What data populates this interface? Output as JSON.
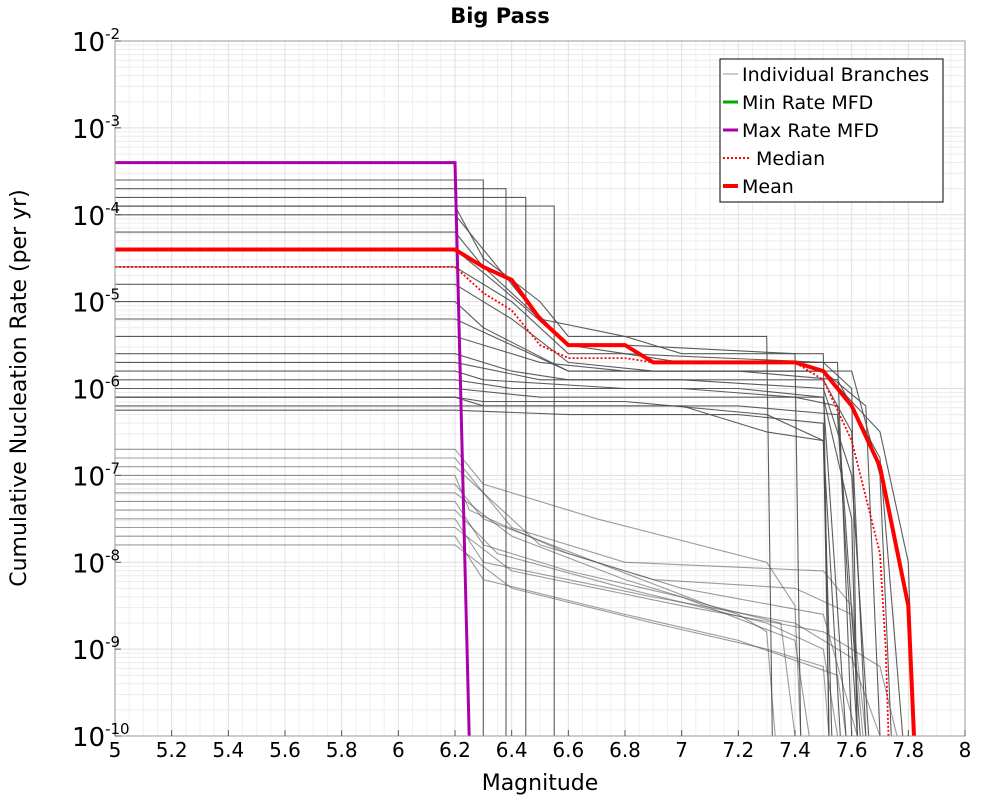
{
  "chart_data": {
    "type": "line",
    "title": "Big Pass",
    "xlabel": "Magnitude",
    "ylabel": "Cumulative Nucleation Rate (per yr)",
    "xlim": [
      5,
      8
    ],
    "ylim_log10": [
      -10,
      -2
    ],
    "y_scale": "log",
    "x_ticks": [
      "5",
      "5.2",
      "5.4",
      "5.6",
      "5.8",
      "6",
      "6.2",
      "6.4",
      "6.6",
      "6.8",
      "7",
      "7.2",
      "7.4",
      "7.6",
      "7.8",
      "8"
    ],
    "y_ticks": [
      {
        "base": "10",
        "exp": "-10",
        "value": -10
      },
      {
        "base": "10",
        "exp": "-9",
        "value": -9
      },
      {
        "base": "10",
        "exp": "-8",
        "value": -8
      },
      {
        "base": "10",
        "exp": "-7",
        "value": -7
      },
      {
        "base": "10",
        "exp": "-6",
        "value": -6
      },
      {
        "base": "10",
        "exp": "-5",
        "value": -5
      },
      {
        "base": "10",
        "exp": "-4",
        "value": -4
      },
      {
        "base": "10",
        "exp": "-3",
        "value": -3
      },
      {
        "base": "10",
        "exp": "-2",
        "value": -2
      }
    ],
    "grid": true,
    "legend_position": "top-right",
    "series": [
      {
        "name": "Individual Branches",
        "style": "thin",
        "color": "#4a4a4a",
        "branches": [
          {
            "x": [
              5,
              6.2,
              6.3,
              6.3
            ],
            "log10y": [
              -3.6,
              -3.6,
              -3.6,
              -10
            ]
          },
          {
            "x": [
              5,
              6.2,
              6.38,
              6.38
            ],
            "log10y": [
              -3.7,
              -3.7,
              -3.7,
              -10
            ]
          },
          {
            "x": [
              5,
              6.2,
              6.45,
              6.45
            ],
            "log10y": [
              -3.8,
              -3.8,
              -3.8,
              -10
            ]
          },
          {
            "x": [
              5,
              6.2,
              6.55,
              6.55
            ],
            "log10y": [
              -3.9,
              -3.9,
              -3.9,
              -10
            ]
          },
          {
            "x": [
              5,
              6.2,
              6.3,
              6.5,
              6.6,
              6.8,
              7.3,
              7.32
            ],
            "log10y": [
              -3.9,
              -3.9,
              -4.5,
              -5,
              -5.4,
              -5.4,
              -5.4,
              -10
            ]
          },
          {
            "x": [
              5,
              6.2,
              6.3,
              6.45,
              6.6,
              6.8,
              7.4,
              7.42
            ],
            "log10y": [
              -4.0,
              -4.0,
              -4.4,
              -5,
              -5.5,
              -5.5,
              -5.6,
              -10
            ]
          },
          {
            "x": [
              5,
              6.2,
              6.3,
              6.5,
              6.8,
              7.0,
              7.5,
              7.52
            ],
            "log10y": [
              -4.2,
              -4.2,
              -4.6,
              -5.2,
              -5.4,
              -5.6,
              -5.6,
              -10
            ]
          },
          {
            "x": [
              5,
              6.2,
              6.35,
              6.6,
              6.8,
              7.0,
              7.55,
              7.6
            ],
            "log10y": [
              -4.4,
              -4.4,
              -4.8,
              -5.5,
              -5.6,
              -5.7,
              -5.7,
              -10
            ]
          },
          {
            "x": [
              5,
              6.2,
              6.4,
              6.6,
              6.8,
              7.5,
              7.6,
              7.62
            ],
            "log10y": [
              -4.6,
              -4.6,
              -5.0,
              -5.6,
              -5.6,
              -5.7,
              -6.0,
              -10
            ]
          },
          {
            "x": [
              5,
              6.2,
              6.4,
              6.6,
              6.9,
              7.5,
              7.65,
              7.7
            ],
            "log10y": [
              -4.8,
              -4.8,
              -5.2,
              -5.7,
              -5.8,
              -5.8,
              -6.2,
              -10
            ]
          },
          {
            "x": [
              5,
              6.2,
              6.3,
              6.6,
              7.0,
              7.6,
              7.7,
              7.74
            ],
            "log10y": [
              -5.0,
              -5.0,
              -5.3,
              -5.8,
              -5.8,
              -5.8,
              -7.0,
              -10
            ]
          },
          {
            "x": [
              5,
              6.2,
              6.4,
              6.6,
              7.0,
              7.5,
              7.7,
              7.8,
              7.82
            ],
            "log10y": [
              -5.2,
              -5.2,
              -5.5,
              -5.8,
              -5.8,
              -5.8,
              -6.5,
              -8.0,
              -10
            ]
          },
          {
            "x": [
              5,
              6.2,
              6.5,
              6.8,
              7.2,
              7.55,
              7.7,
              7.78
            ],
            "log10y": [
              -5.4,
              -5.4,
              -5.7,
              -5.8,
              -5.8,
              -5.9,
              -6.8,
              -10
            ]
          },
          {
            "x": [
              5,
              6.2,
              6.4,
              6.6,
              7.0,
              7.5,
              7.6,
              7.66
            ],
            "log10y": [
              -5.6,
              -5.6,
              -5.8,
              -5.9,
              -5.9,
              -6.0,
              -7.0,
              -10
            ]
          },
          {
            "x": [
              5,
              6.2,
              6.5,
              7.0,
              7.5,
              7.6,
              7.65
            ],
            "log10y": [
              -5.7,
              -5.7,
              -5.9,
              -5.9,
              -5.9,
              -6.5,
              -10
            ]
          },
          {
            "x": [
              5,
              6.2,
              6.3,
              6.8,
              7.2,
              7.5,
              7.58
            ],
            "log10y": [
              -5.8,
              -5.8,
              -5.9,
              -6.0,
              -6.0,
              -6.1,
              -10
            ]
          },
          {
            "x": [
              5,
              6.2,
              6.4,
              7.0,
              7.4,
              7.55,
              7.63
            ],
            "log10y": [
              -5.9,
              -5.9,
              -6.0,
              -6.0,
              -6.1,
              -6.2,
              -10
            ]
          },
          {
            "x": [
              5,
              6.2,
              6.5,
              7.1,
              7.5,
              7.6,
              7.62
            ],
            "log10y": [
              -6.0,
              -6.0,
              -6.1,
              -6.1,
              -6.1,
              -7.5,
              -10
            ]
          },
          {
            "x": [
              5,
              6.2,
              6.3,
              7.0,
              7.3,
              7.5,
              7.56
            ],
            "log10y": [
              -6.1,
              -6.1,
              -6.2,
              -6.2,
              -6.5,
              -6.6,
              -10
            ]
          },
          {
            "x": [
              5,
              6.2,
              6.5,
              7.2,
              7.55,
              7.62
            ],
            "log10y": [
              -6.2,
              -6.2,
              -6.2,
              -6.2,
              -6.3,
              -10
            ]
          },
          {
            "x": [
              5,
              6.2,
              6.6,
              7.2,
              7.5,
              7.52
            ],
            "log10y": [
              -6.25,
              -6.25,
              -6.3,
              -6.3,
              -6.4,
              -10
            ]
          },
          {
            "x": [
              5,
              6.2,
              6.3,
              6.8,
              7.3,
              7.5,
              7.53
            ],
            "log10y": [
              -6.1,
              -6.1,
              -6.15,
              -6.15,
              -6.3,
              -6.6,
              -10
            ]
          },
          {
            "x": [
              5,
              6.2,
              6.25,
              6.4,
              6.8,
              7.5,
              7.6,
              7.65
            ],
            "log10y": [
              -6.8,
              -6.8,
              -7.0,
              -7.6,
              -8.0,
              -8.1,
              -8.5,
              -10
            ]
          },
          {
            "x": [
              5,
              6.2,
              6.3,
              6.5,
              6.9,
              7.4,
              7.6,
              7.64
            ],
            "log10y": [
              -6.9,
              -6.9,
              -7.2,
              -7.8,
              -8.2,
              -8.3,
              -8.6,
              -10
            ]
          },
          {
            "x": [
              5,
              6.2,
              6.25,
              6.6,
              7.0,
              7.5,
              7.62
            ],
            "log10y": [
              -7.0,
              -7.0,
              -7.4,
              -7.9,
              -8.3,
              -8.6,
              -10
            ]
          },
          {
            "x": [
              5,
              6.2,
              6.3,
              6.7,
              7.1,
              7.35,
              7.4
            ],
            "log10y": [
              -7.1,
              -7.1,
              -7.5,
              -8.0,
              -8.5,
              -8.7,
              -10
            ]
          },
          {
            "x": [
              5,
              6.2,
              6.4,
              6.8,
              7.2,
              7.3,
              7.33
            ],
            "log10y": [
              -7.2,
              -7.2,
              -7.7,
              -8.2,
              -8.6,
              -8.8,
              -10
            ]
          },
          {
            "x": [
              5,
              6.2,
              6.3,
              6.6,
              7.0,
              7.4,
              7.45
            ],
            "log10y": [
              -7.3,
              -7.3,
              -7.8,
              -8.1,
              -8.4,
              -8.9,
              -10
            ]
          },
          {
            "x": [
              5,
              6.2,
              6.35,
              6.8,
              7.3,
              7.5,
              7.55
            ],
            "log10y": [
              -7.4,
              -7.4,
              -7.9,
              -8.3,
              -8.7,
              -9.0,
              -10
            ]
          },
          {
            "x": [
              5,
              6.2,
              6.3,
              6.9,
              7.4,
              7.6,
              7.7
            ],
            "log10y": [
              -7.5,
              -7.5,
              -8.0,
              -8.4,
              -8.7,
              -9.1,
              -10
            ]
          },
          {
            "x": [
              5,
              6.2,
              6.4,
              7.0,
              7.5,
              7.7,
              7.76
            ],
            "log10y": [
              -7.6,
              -7.6,
              -8.1,
              -8.5,
              -8.8,
              -9.2,
              -10
            ]
          },
          {
            "x": [
              5,
              6.2,
              6.3,
              6.8,
              7.2,
              7.55,
              7.58
            ],
            "log10y": [
              -7.7,
              -7.7,
              -8.2,
              -8.6,
              -8.9,
              -9.3,
              -10
            ]
          },
          {
            "x": [
              5,
              6.2,
              6.4,
              6.9,
              7.3,
              7.5,
              7.52
            ],
            "log10y": [
              -7.8,
              -7.8,
              -8.3,
              -8.7,
              -9.0,
              -9.2,
              -10
            ]
          },
          {
            "x": [
              5,
              6.2,
              6.3,
              6.7,
              7.3,
              7.4,
              7.42
            ],
            "log10y": [
              -6.7,
              -6.7,
              -7.1,
              -7.5,
              -8.0,
              -8.5,
              -10
            ]
          }
        ]
      },
      {
        "name": "Min Rate MFD",
        "style": "solid",
        "color": "#00aa00",
        "x": [],
        "log10y": []
      },
      {
        "name": "Max Rate MFD",
        "style": "solid",
        "color": "#aa00aa",
        "x": [
          5,
          6.2,
          6.25
        ],
        "log10y": [
          -3.4,
          -3.4,
          -10
        ]
      },
      {
        "name": "Median",
        "style": "dotted",
        "color": "#ff0000",
        "x": [
          5,
          6.2,
          6.3,
          6.4,
          6.5,
          6.6,
          6.8,
          6.9,
          7.4,
          7.5,
          7.6,
          7.7,
          7.72,
          7.73
        ],
        "log10y": [
          -4.6,
          -4.6,
          -4.9,
          -5.1,
          -5.5,
          -5.65,
          -5.65,
          -5.7,
          -5.7,
          -5.9,
          -6.6,
          -7.9,
          -9.0,
          -10
        ]
      },
      {
        "name": "Mean",
        "style": "thick",
        "color": "#ff0000",
        "x": [
          5,
          6.2,
          6.3,
          6.4,
          6.5,
          6.6,
          6.8,
          6.9,
          7.4,
          7.5,
          7.6,
          7.7,
          7.8,
          7.82
        ],
        "log10y": [
          -4.4,
          -4.4,
          -4.6,
          -4.75,
          -5.2,
          -5.5,
          -5.5,
          -5.7,
          -5.7,
          -5.8,
          -6.2,
          -6.9,
          -8.5,
          -10
        ]
      }
    ]
  }
}
